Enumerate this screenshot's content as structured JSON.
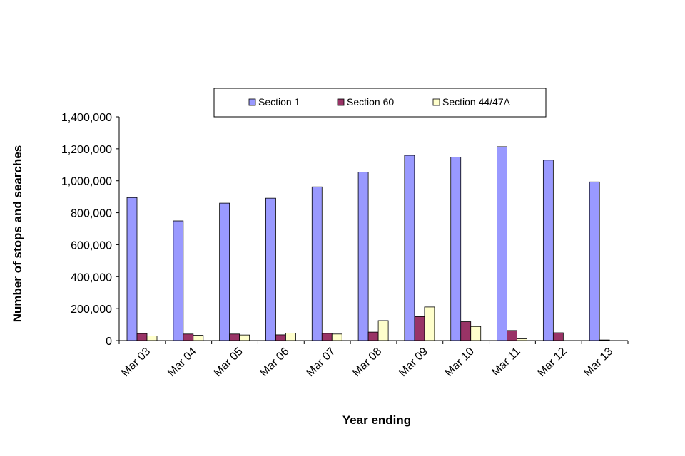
{
  "chart_data": {
    "type": "bar",
    "xlabel": "Year ending",
    "ylabel": "Number of stops and searches",
    "ylim": [
      0,
      1400000
    ],
    "yticks": [
      "0",
      "200,000",
      "400,000",
      "600,000",
      "800,000",
      "1,000,000",
      "1,200,000",
      "1,400,000"
    ],
    "categories": [
      "Mar 03",
      "Mar 04",
      "Mar 05",
      "Mar 06",
      "Mar 07",
      "Mar 08",
      "Mar 09",
      "Mar 10",
      "Mar 11",
      "Mar 12",
      "Mar 13"
    ],
    "legend_position": "top",
    "grid": false,
    "series": [
      {
        "name": "Section 1",
        "color": "#9999ff",
        "values": [
          895000,
          749000,
          860000,
          891000,
          962000,
          1054000,
          1159000,
          1148000,
          1213000,
          1129000,
          993000
        ]
      },
      {
        "name": "Section 60",
        "color": "#993366",
        "values": [
          44000,
          41000,
          41000,
          36000,
          45000,
          53000,
          150000,
          118000,
          63000,
          49000,
          4000
        ]
      },
      {
        "name": "Section 44/47A",
        "color": "#ffffcc",
        "values": [
          29000,
          33000,
          35000,
          47000,
          41000,
          125000,
          210000,
          88000,
          11000,
          0,
          0
        ]
      }
    ]
  }
}
